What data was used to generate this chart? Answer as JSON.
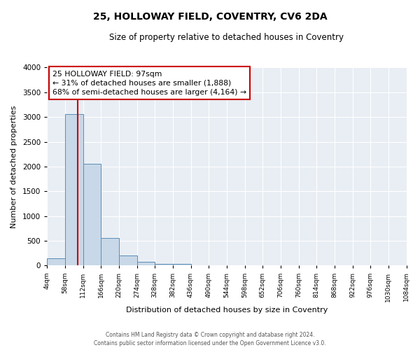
{
  "title": "25, HOLLOWAY FIELD, COVENTRY, CV6 2DA",
  "subtitle": "Size of property relative to detached houses in Coventry",
  "xlabel": "Distribution of detached houses by size in Coventry",
  "ylabel": "Number of detached properties",
  "bin_edges": [
    4,
    58,
    112,
    166,
    220,
    274,
    328,
    382,
    436,
    490,
    544,
    598,
    652,
    706,
    760,
    814,
    868,
    922,
    976,
    1030,
    1084
  ],
  "bin_counts": [
    150,
    3060,
    2060,
    560,
    205,
    70,
    35,
    30,
    0,
    0,
    0,
    0,
    0,
    0,
    0,
    0,
    0,
    0,
    0,
    0
  ],
  "property_line_x": 97,
  "bar_color": "#c8d8e8",
  "bar_edge_color": "#5b8db8",
  "line_color": "#cc0000",
  "annotation_box_edge_color": "#cc0000",
  "annotation_text_line1": "25 HOLLOWAY FIELD: 97sqm",
  "annotation_text_line2": "← 31% of detached houses are smaller (1,888)",
  "annotation_text_line3": "68% of semi-detached houses are larger (4,164) →",
  "ylim": [
    0,
    4000
  ],
  "background_color": "#e8eef4",
  "grid_color": "#ffffff",
  "footer_line1": "Contains HM Land Registry data © Crown copyright and database right 2024.",
  "footer_line2": "Contains public sector information licensed under the Open Government Licence v3.0."
}
